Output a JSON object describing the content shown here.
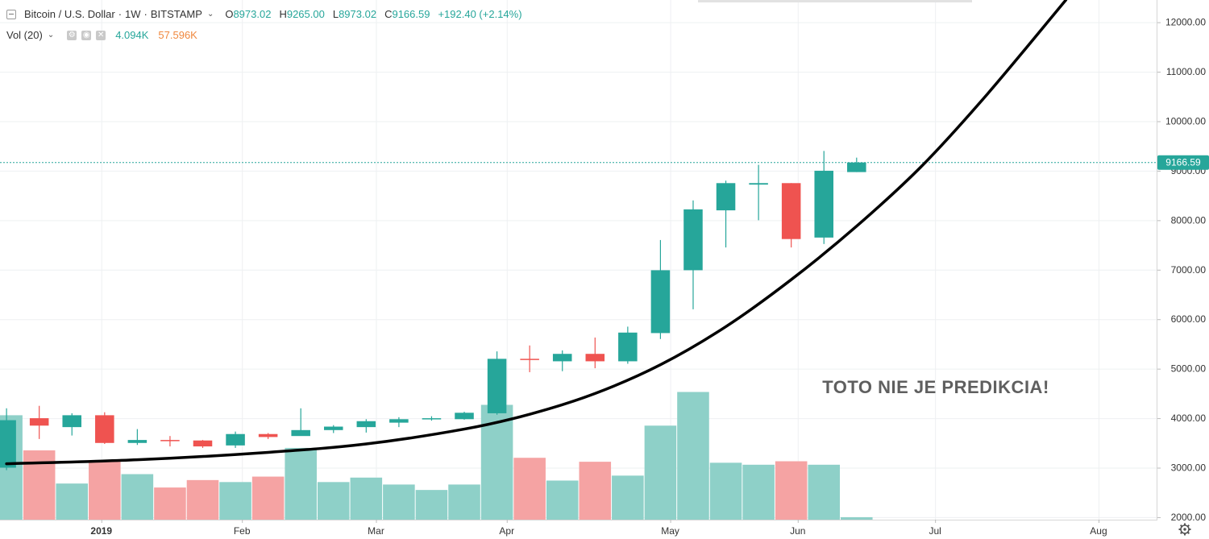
{
  "header": {
    "symbol": "Bitcoin / U.S. Dollar",
    "sep1": "·",
    "interval": "1W",
    "sep2": "·",
    "exchange": "BITSTAMP",
    "open_label": "O",
    "open": "8973.02",
    "high_label": "H",
    "high": "9265.00",
    "low_label": "L",
    "low": "8973.02",
    "close_label": "C",
    "close": "9166.59",
    "change": "+192.40 (+2.14%)"
  },
  "volume_legend": {
    "label": "Vol (20)",
    "value1": "4.094K",
    "value2": "57.596K"
  },
  "annotation": "TOTO NIE JE PREDIKCIA!",
  "colors": {
    "up": "#26a69a",
    "down": "#ef5350",
    "vol_up": "#8ed0c8",
    "vol_down": "#f5a3a3",
    "curve": "#000000",
    "annotation": "#5f5f5f",
    "price_line": "#26a69a"
  },
  "chart_data": {
    "type": "candlestick",
    "title": "Bitcoin / U.S. Dollar · 1W · BITSTAMP",
    "last_price": 9166.59,
    "price_label": "9166.59",
    "y_axis": {
      "ticks": [
        2000,
        3000,
        4000,
        5000,
        6000,
        7000,
        8000,
        9000,
        10000,
        11000,
        12000
      ],
      "tick_labels": [
        "2000.00",
        "3000.00",
        "4000.00",
        "5000.00",
        "6000.00",
        "7000.00",
        "8000.00",
        "9000.00",
        "10000.00",
        "11000.00",
        "12000.00"
      ],
      "range": [
        1950,
        12450
      ]
    },
    "x_axis": {
      "labels": [
        "2019",
        "Feb",
        "Mar",
        "Apr",
        "May",
        "Jun",
        "Jul",
        "Aug"
      ],
      "label_positions_weeks": [
        2.9,
        7.2,
        11.3,
        15.3,
        20.3,
        24.2,
        28.4,
        33.4
      ],
      "range_weeks": [
        0,
        35.4
      ]
    },
    "candles": [
      {
        "week": 0,
        "o": 3000,
        "h": 4200,
        "l": 2950,
        "c": 3960
      },
      {
        "week": 1,
        "o": 4000,
        "h": 4250,
        "l": 3580,
        "c": 3850
      },
      {
        "week": 2,
        "o": 3820,
        "h": 4100,
        "l": 3650,
        "c": 4060
      },
      {
        "week": 3,
        "o": 4060,
        "h": 4120,
        "l": 3480,
        "c": 3500
      },
      {
        "week": 4,
        "o": 3500,
        "h": 3780,
        "l": 3460,
        "c": 3560
      },
      {
        "week": 5,
        "o": 3560,
        "h": 3640,
        "l": 3430,
        "c": 3540
      },
      {
        "week": 6,
        "o": 3550,
        "h": 3560,
        "l": 3400,
        "c": 3430
      },
      {
        "week": 7,
        "o": 3450,
        "h": 3730,
        "l": 3400,
        "c": 3680
      },
      {
        "week": 8,
        "o": 3680,
        "h": 3700,
        "l": 3580,
        "c": 3620
      },
      {
        "week": 9,
        "o": 3640,
        "h": 4200,
        "l": 3650,
        "c": 3760
      },
      {
        "week": 10,
        "o": 3760,
        "h": 3860,
        "l": 3700,
        "c": 3830
      },
      {
        "week": 11,
        "o": 3820,
        "h": 3980,
        "l": 3710,
        "c": 3940
      },
      {
        "week": 12,
        "o": 3910,
        "h": 4020,
        "l": 3820,
        "c": 3980
      },
      {
        "week": 13,
        "o": 3980,
        "h": 4040,
        "l": 3950,
        "c": 4000
      },
      {
        "week": 14,
        "o": 3980,
        "h": 4130,
        "l": 3970,
        "c": 4110
      },
      {
        "week": 15,
        "o": 4100,
        "h": 5350,
        "l": 4070,
        "c": 5200
      },
      {
        "week": 16,
        "o": 5200,
        "h": 5470,
        "l": 4930,
        "c": 5180
      },
      {
        "week": 17,
        "o": 5150,
        "h": 5370,
        "l": 4950,
        "c": 5300
      },
      {
        "week": 18,
        "o": 5300,
        "h": 5630,
        "l": 5010,
        "c": 5150
      },
      {
        "week": 19,
        "o": 5150,
        "h": 5850,
        "l": 5100,
        "c": 5730
      },
      {
        "week": 20,
        "o": 5720,
        "h": 7600,
        "l": 5600,
        "c": 6990
      },
      {
        "week": 21,
        "o": 6990,
        "h": 8400,
        "l": 6200,
        "c": 8220
      },
      {
        "week": 22,
        "o": 8200,
        "h": 8800,
        "l": 7450,
        "c": 8750
      },
      {
        "week": 23,
        "o": 8720,
        "h": 9120,
        "l": 8000,
        "c": 8750
      },
      {
        "week": 24,
        "o": 8750,
        "h": 8750,
        "l": 7450,
        "c": 7620
      },
      {
        "week": 25,
        "o": 7650,
        "h": 9400,
        "l": 7520,
        "c": 9000
      },
      {
        "week": 26,
        "o": 8973,
        "h": 9265,
        "l": 8973,
        "c": 9167
      }
    ],
    "volume": [
      {
        "week": 0,
        "v": 4060,
        "dir": "up"
      },
      {
        "week": 1,
        "v": 3350,
        "dir": "down"
      },
      {
        "week": 2,
        "v": 2680,
        "dir": "up"
      },
      {
        "week": 3,
        "v": 3130,
        "dir": "down"
      },
      {
        "week": 4,
        "v": 2870,
        "dir": "up"
      },
      {
        "week": 5,
        "v": 2600,
        "dir": "down"
      },
      {
        "week": 6,
        "v": 2750,
        "dir": "down"
      },
      {
        "week": 7,
        "v": 2710,
        "dir": "up"
      },
      {
        "week": 8,
        "v": 2820,
        "dir": "down"
      },
      {
        "week": 9,
        "v": 3400,
        "dir": "up"
      },
      {
        "week": 10,
        "v": 2710,
        "dir": "up"
      },
      {
        "week": 11,
        "v": 2800,
        "dir": "up"
      },
      {
        "week": 12,
        "v": 2660,
        "dir": "up"
      },
      {
        "week": 13,
        "v": 2550,
        "dir": "up"
      },
      {
        "week": 14,
        "v": 2660,
        "dir": "up"
      },
      {
        "week": 15,
        "v": 4270,
        "dir": "up"
      },
      {
        "week": 16,
        "v": 3200,
        "dir": "down"
      },
      {
        "week": 17,
        "v": 2740,
        "dir": "up"
      },
      {
        "week": 18,
        "v": 3120,
        "dir": "down"
      },
      {
        "week": 19,
        "v": 2840,
        "dir": "up"
      },
      {
        "week": 20,
        "v": 3850,
        "dir": "up"
      },
      {
        "week": 21,
        "v": 4530,
        "dir": "up"
      },
      {
        "week": 22,
        "v": 3100,
        "dir": "up"
      },
      {
        "week": 23,
        "v": 3060,
        "dir": "up"
      },
      {
        "week": 24,
        "v": 3130,
        "dir": "down"
      },
      {
        "week": 25,
        "v": 3060,
        "dir": "up"
      },
      {
        "week": 26,
        "v": 2000,
        "dir": "up"
      }
    ],
    "curve": [
      {
        "week": 0,
        "y": 3080
      },
      {
        "week": 4,
        "y": 3160
      },
      {
        "week": 8,
        "y": 3310
      },
      {
        "week": 11,
        "y": 3480
      },
      {
        "week": 14,
        "y": 3780
      },
      {
        "week": 16,
        "y": 4080
      },
      {
        "week": 18,
        "y": 4500
      },
      {
        "week": 20,
        "y": 5080
      },
      {
        "week": 22,
        "y": 5850
      },
      {
        "week": 24,
        "y": 6800
      },
      {
        "week": 26,
        "y": 7880
      },
      {
        "week": 28,
        "y": 9100
      },
      {
        "week": 30,
        "y": 10550
      },
      {
        "week": 32.4,
        "y": 12450
      }
    ]
  }
}
